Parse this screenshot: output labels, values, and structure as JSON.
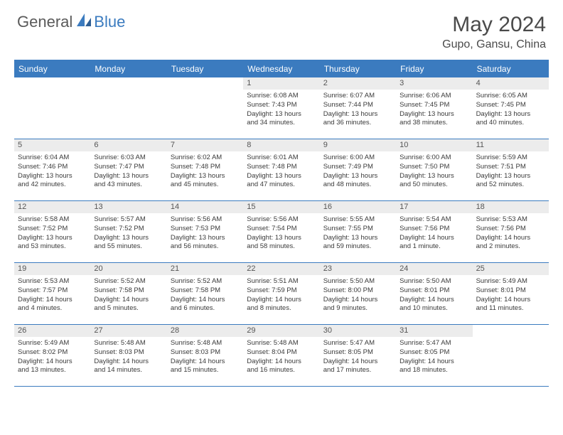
{
  "brand": {
    "part1": "General",
    "part2": "Blue"
  },
  "title": "May 2024",
  "location": "Gupo, Gansu, China",
  "colors": {
    "accent": "#3b7bbf",
    "header_text": "#ffffff",
    "daynum_bg": "#ececec",
    "body_text": "#3a3a3a",
    "title_text": "#4a4a4a"
  },
  "weekdays": [
    "Sunday",
    "Monday",
    "Tuesday",
    "Wednesday",
    "Thursday",
    "Friday",
    "Saturday"
  ],
  "weeks": [
    [
      null,
      null,
      null,
      {
        "n": "1",
        "sr": "Sunrise: 6:08 AM",
        "ss": "Sunset: 7:43 PM",
        "d1": "Daylight: 13 hours",
        "d2": "and 34 minutes."
      },
      {
        "n": "2",
        "sr": "Sunrise: 6:07 AM",
        "ss": "Sunset: 7:44 PM",
        "d1": "Daylight: 13 hours",
        "d2": "and 36 minutes."
      },
      {
        "n": "3",
        "sr": "Sunrise: 6:06 AM",
        "ss": "Sunset: 7:45 PM",
        "d1": "Daylight: 13 hours",
        "d2": "and 38 minutes."
      },
      {
        "n": "4",
        "sr": "Sunrise: 6:05 AM",
        "ss": "Sunset: 7:45 PM",
        "d1": "Daylight: 13 hours",
        "d2": "and 40 minutes."
      }
    ],
    [
      {
        "n": "5",
        "sr": "Sunrise: 6:04 AM",
        "ss": "Sunset: 7:46 PM",
        "d1": "Daylight: 13 hours",
        "d2": "and 42 minutes."
      },
      {
        "n": "6",
        "sr": "Sunrise: 6:03 AM",
        "ss": "Sunset: 7:47 PM",
        "d1": "Daylight: 13 hours",
        "d2": "and 43 minutes."
      },
      {
        "n": "7",
        "sr": "Sunrise: 6:02 AM",
        "ss": "Sunset: 7:48 PM",
        "d1": "Daylight: 13 hours",
        "d2": "and 45 minutes."
      },
      {
        "n": "8",
        "sr": "Sunrise: 6:01 AM",
        "ss": "Sunset: 7:48 PM",
        "d1": "Daylight: 13 hours",
        "d2": "and 47 minutes."
      },
      {
        "n": "9",
        "sr": "Sunrise: 6:00 AM",
        "ss": "Sunset: 7:49 PM",
        "d1": "Daylight: 13 hours",
        "d2": "and 48 minutes."
      },
      {
        "n": "10",
        "sr": "Sunrise: 6:00 AM",
        "ss": "Sunset: 7:50 PM",
        "d1": "Daylight: 13 hours",
        "d2": "and 50 minutes."
      },
      {
        "n": "11",
        "sr": "Sunrise: 5:59 AM",
        "ss": "Sunset: 7:51 PM",
        "d1": "Daylight: 13 hours",
        "d2": "and 52 minutes."
      }
    ],
    [
      {
        "n": "12",
        "sr": "Sunrise: 5:58 AM",
        "ss": "Sunset: 7:52 PM",
        "d1": "Daylight: 13 hours",
        "d2": "and 53 minutes."
      },
      {
        "n": "13",
        "sr": "Sunrise: 5:57 AM",
        "ss": "Sunset: 7:52 PM",
        "d1": "Daylight: 13 hours",
        "d2": "and 55 minutes."
      },
      {
        "n": "14",
        "sr": "Sunrise: 5:56 AM",
        "ss": "Sunset: 7:53 PM",
        "d1": "Daylight: 13 hours",
        "d2": "and 56 minutes."
      },
      {
        "n": "15",
        "sr": "Sunrise: 5:56 AM",
        "ss": "Sunset: 7:54 PM",
        "d1": "Daylight: 13 hours",
        "d2": "and 58 minutes."
      },
      {
        "n": "16",
        "sr": "Sunrise: 5:55 AM",
        "ss": "Sunset: 7:55 PM",
        "d1": "Daylight: 13 hours",
        "d2": "and 59 minutes."
      },
      {
        "n": "17",
        "sr": "Sunrise: 5:54 AM",
        "ss": "Sunset: 7:56 PM",
        "d1": "Daylight: 14 hours",
        "d2": "and 1 minute."
      },
      {
        "n": "18",
        "sr": "Sunrise: 5:53 AM",
        "ss": "Sunset: 7:56 PM",
        "d1": "Daylight: 14 hours",
        "d2": "and 2 minutes."
      }
    ],
    [
      {
        "n": "19",
        "sr": "Sunrise: 5:53 AM",
        "ss": "Sunset: 7:57 PM",
        "d1": "Daylight: 14 hours",
        "d2": "and 4 minutes."
      },
      {
        "n": "20",
        "sr": "Sunrise: 5:52 AM",
        "ss": "Sunset: 7:58 PM",
        "d1": "Daylight: 14 hours",
        "d2": "and 5 minutes."
      },
      {
        "n": "21",
        "sr": "Sunrise: 5:52 AM",
        "ss": "Sunset: 7:58 PM",
        "d1": "Daylight: 14 hours",
        "d2": "and 6 minutes."
      },
      {
        "n": "22",
        "sr": "Sunrise: 5:51 AM",
        "ss": "Sunset: 7:59 PM",
        "d1": "Daylight: 14 hours",
        "d2": "and 8 minutes."
      },
      {
        "n": "23",
        "sr": "Sunrise: 5:50 AM",
        "ss": "Sunset: 8:00 PM",
        "d1": "Daylight: 14 hours",
        "d2": "and 9 minutes."
      },
      {
        "n": "24",
        "sr": "Sunrise: 5:50 AM",
        "ss": "Sunset: 8:01 PM",
        "d1": "Daylight: 14 hours",
        "d2": "and 10 minutes."
      },
      {
        "n": "25",
        "sr": "Sunrise: 5:49 AM",
        "ss": "Sunset: 8:01 PM",
        "d1": "Daylight: 14 hours",
        "d2": "and 11 minutes."
      }
    ],
    [
      {
        "n": "26",
        "sr": "Sunrise: 5:49 AM",
        "ss": "Sunset: 8:02 PM",
        "d1": "Daylight: 14 hours",
        "d2": "and 13 minutes."
      },
      {
        "n": "27",
        "sr": "Sunrise: 5:48 AM",
        "ss": "Sunset: 8:03 PM",
        "d1": "Daylight: 14 hours",
        "d2": "and 14 minutes."
      },
      {
        "n": "28",
        "sr": "Sunrise: 5:48 AM",
        "ss": "Sunset: 8:03 PM",
        "d1": "Daylight: 14 hours",
        "d2": "and 15 minutes."
      },
      {
        "n": "29",
        "sr": "Sunrise: 5:48 AM",
        "ss": "Sunset: 8:04 PM",
        "d1": "Daylight: 14 hours",
        "d2": "and 16 minutes."
      },
      {
        "n": "30",
        "sr": "Sunrise: 5:47 AM",
        "ss": "Sunset: 8:05 PM",
        "d1": "Daylight: 14 hours",
        "d2": "and 17 minutes."
      },
      {
        "n": "31",
        "sr": "Sunrise: 5:47 AM",
        "ss": "Sunset: 8:05 PM",
        "d1": "Daylight: 14 hours",
        "d2": "and 18 minutes."
      },
      null
    ]
  ]
}
